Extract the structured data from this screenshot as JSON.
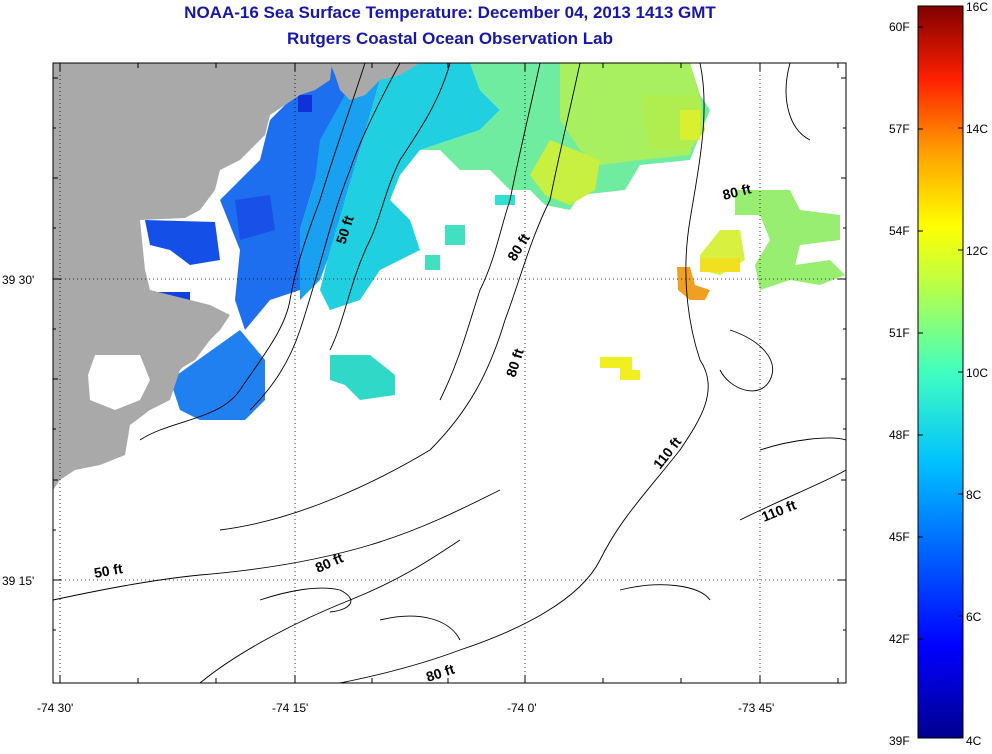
{
  "header": {
    "title": "NOAA-16 Sea Surface Temperature:  December 04, 2013 1413 GMT",
    "subtitle": "Rutgers Coastal Ocean Observation Lab"
  },
  "axes": {
    "longitude_ticks": [
      "-74 30'",
      "-74 15'",
      "-74 0'",
      "-73 45'"
    ],
    "latitude_ticks": [
      "39 30'",
      "39 15'"
    ]
  },
  "contour_labels": [
    {
      "text": "50 ft",
      "depth_ft": 50
    },
    {
      "text": "80 ft",
      "depth_ft": 80
    },
    {
      "text": "80 ft",
      "depth_ft": 80
    },
    {
      "text": "80 ft",
      "depth_ft": 80
    },
    {
      "text": "80 ft",
      "depth_ft": 80
    },
    {
      "text": "50 ft",
      "depth_ft": 50
    },
    {
      "text": "80 ft",
      "depth_ft": 80
    },
    {
      "text": "110 ft",
      "depth_ft": 110
    },
    {
      "text": "110 ft",
      "depth_ft": 110
    }
  ],
  "colorbar": {
    "fahrenheit_labels": [
      "60F",
      "57F",
      "54F",
      "51F",
      "48F",
      "45F",
      "42F",
      "39F"
    ],
    "celsius_labels": [
      "16C",
      "14C",
      "12C",
      "10C",
      "8C",
      "6C",
      "4C"
    ],
    "min_c": 4,
    "max_c": 16,
    "colors": [
      "#00008f",
      "#0000ff",
      "#0080ff",
      "#00ffff",
      "#80ff80",
      "#ffff00",
      "#ff8000",
      "#ff0000",
      "#800000"
    ]
  },
  "colors": {
    "land": "#a9a9a9",
    "title": "#1818a8"
  }
}
